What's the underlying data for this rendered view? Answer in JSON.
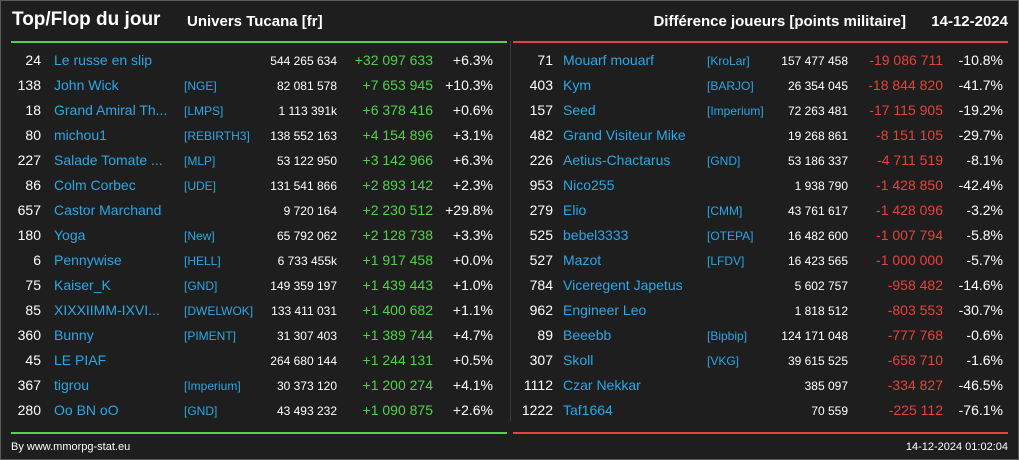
{
  "header": {
    "title": "Top/Flop du jour",
    "universe": "Univers Tucana [fr]",
    "metric": "Différence joueurs [points militaire]",
    "date": "14-12-2024"
  },
  "colors": {
    "top": "#52d14a",
    "flop": "#e6413b",
    "link": "#2aa7e6"
  },
  "top": [
    {
      "rank": "24",
      "name": "Le russe en slip",
      "tag": "",
      "total": "544 265 634",
      "diff": "+32 097 633",
      "pct": "+6.3%"
    },
    {
      "rank": "138",
      "name": "John Wick",
      "tag": "[NGE]",
      "total": "82 081 578",
      "diff": "+7 653 945",
      "pct": "+10.3%"
    },
    {
      "rank": "18",
      "name": "Grand Amiral Th...",
      "tag": "[LMPS]",
      "total": "1 113 391k",
      "diff": "+6 378 416",
      "pct": "+0.6%"
    },
    {
      "rank": "80",
      "name": "michou1",
      "tag": "[REBIRTH3]",
      "total": "138 552 163",
      "diff": "+4 154 896",
      "pct": "+3.1%"
    },
    {
      "rank": "227",
      "name": "Salade Tomate ...",
      "tag": "[MLP]",
      "total": "53 122 950",
      "diff": "+3 142 966",
      "pct": "+6.3%"
    },
    {
      "rank": "86",
      "name": "Colm Corbec",
      "tag": "[UDE]",
      "total": "131 541 866",
      "diff": "+2 893 142",
      "pct": "+2.3%"
    },
    {
      "rank": "657",
      "name": "Castor Marchand",
      "tag": "",
      "total": "9 720 164",
      "diff": "+2 230 512",
      "pct": "+29.8%"
    },
    {
      "rank": "180",
      "name": "Yoga",
      "tag": "[New]",
      "total": "65 792 062",
      "diff": "+2 128 738",
      "pct": "+3.3%"
    },
    {
      "rank": "6",
      "name": "Pennywise",
      "tag": "[HELL]",
      "total": "6 733 455k",
      "diff": "+1 917 458",
      "pct": "+0.0%"
    },
    {
      "rank": "75",
      "name": "Kaiser_K",
      "tag": "[GND]",
      "total": "149 359 197",
      "diff": "+1 439 443",
      "pct": "+1.0%"
    },
    {
      "rank": "85",
      "name": "XIXXIIMM-IXVI...",
      "tag": "[DWELWOK]",
      "total": "133 411 031",
      "diff": "+1 400 682",
      "pct": "+1.1%"
    },
    {
      "rank": "360",
      "name": "Bunny",
      "tag": "[PIMENT]",
      "total": "31 307 403",
      "diff": "+1 389 744",
      "pct": "+4.7%"
    },
    {
      "rank": "45",
      "name": "LE PIAF",
      "tag": "",
      "total": "264 680 144",
      "diff": "+1 244 131",
      "pct": "+0.5%"
    },
    {
      "rank": "367",
      "name": "tigrou",
      "tag": "[Imperium]",
      "total": "30 373 120",
      "diff": "+1 200 274",
      "pct": "+4.1%"
    },
    {
      "rank": "280",
      "name": "Oo BN oO",
      "tag": "[GND]",
      "total": "43 493 232",
      "diff": "+1 090 875",
      "pct": "+2.6%"
    }
  ],
  "flop": [
    {
      "rank": "71",
      "name": "Mouarf mouarf",
      "tag": "[KroLar]",
      "total": "157 477 458",
      "diff": "-19 086 711",
      "pct": "-10.8%"
    },
    {
      "rank": "403",
      "name": "Kym",
      "tag": "[BARJO]",
      "total": "26 354 045",
      "diff": "-18 844 820",
      "pct": "-41.7%"
    },
    {
      "rank": "157",
      "name": "Seed",
      "tag": "[Imperium]",
      "total": "72 263 481",
      "diff": "-17 115 905",
      "pct": "-19.2%"
    },
    {
      "rank": "482",
      "name": "Grand Visiteur Mike",
      "tag": "",
      "total": "19 268 861",
      "diff": "-8 151 105",
      "pct": "-29.7%"
    },
    {
      "rank": "226",
      "name": "Aetius-Chactarus",
      "tag": "[GND]",
      "total": "53 186 337",
      "diff": "-4 711 519",
      "pct": "-8.1%"
    },
    {
      "rank": "953",
      "name": "Nico255",
      "tag": "",
      "total": "1 938 790",
      "diff": "-1 428 850",
      "pct": "-42.4%"
    },
    {
      "rank": "279",
      "name": "Elio",
      "tag": "[CMM]",
      "total": "43 761 617",
      "diff": "-1 428 096",
      "pct": "-3.2%"
    },
    {
      "rank": "525",
      "name": "bebel3333",
      "tag": "[OTEPA]",
      "total": "16 482 600",
      "diff": "-1 007 794",
      "pct": "-5.8%"
    },
    {
      "rank": "527",
      "name": "Mazot",
      "tag": "[LFDV]",
      "total": "16 423 565",
      "diff": "-1 000 000",
      "pct": "-5.7%"
    },
    {
      "rank": "784",
      "name": "Viceregent Japetus",
      "tag": "",
      "total": "5 602 757",
      "diff": "-958 482",
      "pct": "-14.6%"
    },
    {
      "rank": "962",
      "name": "Engineer Leo",
      "tag": "",
      "total": "1 818 512",
      "diff": "-803 553",
      "pct": "-30.7%"
    },
    {
      "rank": "89",
      "name": "Beeebb",
      "tag": "[Bipbip]",
      "total": "124 171 048",
      "diff": "-777 768",
      "pct": "-0.6%"
    },
    {
      "rank": "307",
      "name": "Skoll",
      "tag": "[VKG]",
      "total": "39 615 525",
      "diff": "-658 710",
      "pct": "-1.6%"
    },
    {
      "rank": "1112",
      "name": "Czar Nekkar",
      "tag": "",
      "total": "385 097",
      "diff": "-334 827",
      "pct": "-46.5%"
    },
    {
      "rank": "1222",
      "name": "Taf1664",
      "tag": "",
      "total": "70 559",
      "diff": "-225 112",
      "pct": "-76.1%"
    }
  ],
  "footer": {
    "source": "By www.mmorpg-stat.eu",
    "timestamp": "14-12-2024 01:02:04"
  }
}
